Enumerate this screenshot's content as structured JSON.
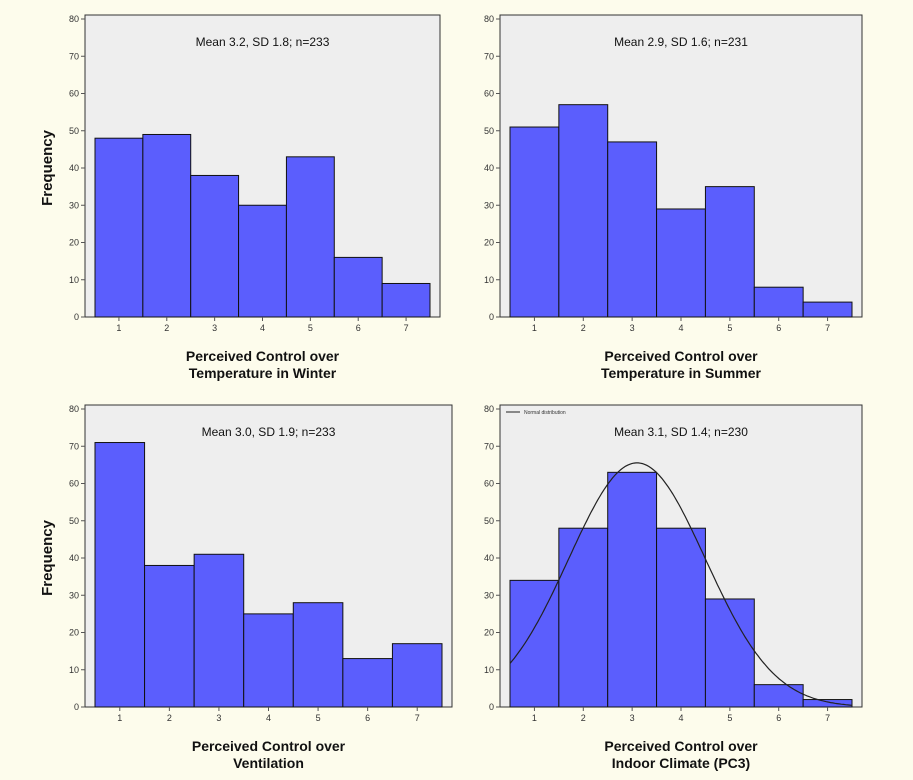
{
  "figure": {
    "y_axis_label_top": "Frequency",
    "y_axis_label_bottom": "Frequency",
    "colors": {
      "bar": "#5b5efd",
      "bar_edge": "#111111",
      "plot_bg": "#eeeeee",
      "page_bg": "#fdfcec"
    }
  },
  "chart_data": [
    {
      "type": "bar",
      "annotation": "Mean 3.2, SD 1.8; n=233",
      "xlabel": [
        "Perceived Control over",
        "Temperature in Winter"
      ],
      "ylabel": "Frequency",
      "categories": [
        1,
        2,
        3,
        4,
        5,
        6,
        7
      ],
      "values": [
        48,
        49,
        38,
        30,
        43,
        16,
        9
      ],
      "ylim": [
        0,
        80
      ],
      "yticks": [
        0,
        10,
        20,
        30,
        40,
        50,
        60,
        70,
        80
      ],
      "grid": false
    },
    {
      "type": "bar",
      "annotation": "Mean 2.9, SD 1.6; n=231",
      "xlabel": [
        "Perceived Control over",
        "Temperature in Summer"
      ],
      "ylabel": "",
      "categories": [
        1,
        2,
        3,
        4,
        5,
        6,
        7
      ],
      "values": [
        51,
        57,
        47,
        29,
        35,
        8,
        4
      ],
      "ylim": [
        0,
        80
      ],
      "yticks": [
        0,
        10,
        20,
        30,
        40,
        50,
        60,
        70,
        80
      ],
      "grid": false
    },
    {
      "type": "bar",
      "annotation": "Mean 3.0, SD 1.9; n=233",
      "xlabel": [
        "Perceived Control over",
        "Ventilation"
      ],
      "ylabel": "Frequency",
      "categories": [
        1,
        2,
        3,
        4,
        5,
        6,
        7
      ],
      "values": [
        71,
        38,
        41,
        25,
        28,
        13,
        17
      ],
      "ylim": [
        0,
        80
      ],
      "yticks": [
        0,
        10,
        20,
        30,
        40,
        50,
        60,
        70,
        80
      ],
      "grid": false
    },
    {
      "type": "bar",
      "annotation": "Mean 3.1, SD 1.4; n=230",
      "xlabel": [
        "Perceived Control over",
        "Indoor Climate (PC3)"
      ],
      "ylabel": "",
      "categories": [
        1,
        2,
        3,
        4,
        5,
        6,
        7
      ],
      "values": [
        34,
        48,
        63,
        48,
        29,
        6,
        2
      ],
      "ylim": [
        0,
        80
      ],
      "yticks": [
        0,
        10,
        20,
        30,
        40,
        50,
        60,
        70,
        80
      ],
      "grid": false,
      "legend": {
        "label": "Normal distribution",
        "placement": "top-left"
      },
      "normal_curve": {
        "mean": 3.1,
        "sd": 1.4,
        "n": 230,
        "bin_width": 1
      }
    }
  ]
}
